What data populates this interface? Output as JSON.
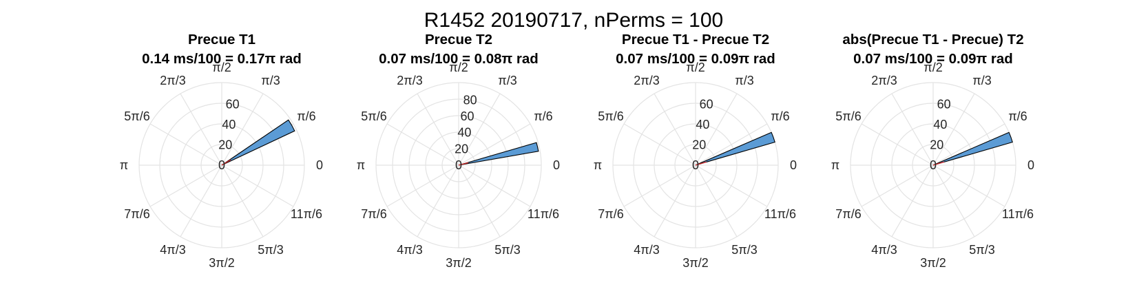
{
  "figure": {
    "suptitle": "R1452 20190717, nPerms = 100"
  },
  "colors": {
    "bar_fill": "#5b9bd5",
    "bar_edge": "#000000",
    "mean_line": "#d62728",
    "grid": "#e3e3e3"
  },
  "chart_data": [
    {
      "type": "polar-histogram",
      "title": "Precue T1",
      "subtitle": "0.14 ms/100 = 0.17π rad",
      "theta_tick_labels": [
        "0",
        "π/6",
        "π/3",
        "π/2",
        "2π/3",
        "5π/6",
        "π",
        "7π/6",
        "4π/3",
        "3π/2",
        "5π/3",
        "11π/6"
      ],
      "r_tick_labels": [
        "0",
        "20",
        "40",
        "60"
      ],
      "r_max": 80,
      "bins": [
        {
          "theta_start": 0.14,
          "theta_end": 0.19,
          "value": 78
        }
      ],
      "mean_vector": {
        "theta": 0.17,
        "length": 10
      }
    },
    {
      "type": "polar-histogram",
      "title": "Precue T2",
      "subtitle": "0.07 ms/100 = 0.08π rad",
      "theta_tick_labels": [
        "0",
        "π/6",
        "π/3",
        "π/2",
        "2π/3",
        "5π/6",
        "π",
        "7π/6",
        "4π/3",
        "3π/2",
        "5π/3",
        "11π/6"
      ],
      "r_tick_labels": [
        "0",
        "20",
        "40",
        "60",
        "80"
      ],
      "r_max": 100,
      "bins": [
        {
          "theta_start": 0.055,
          "theta_end": 0.09,
          "value": 98
        }
      ],
      "mean_vector": {
        "theta": 0.08,
        "length": 12
      }
    },
    {
      "type": "polar-histogram",
      "title": "Precue T1 - Precue T2",
      "subtitle": "0.07 ms/100 = 0.09π rad",
      "theta_tick_labels": [
        "0",
        "π/6",
        "π/3",
        "π/2",
        "2π/3",
        "5π/6",
        "π",
        "7π/6",
        "4π/3",
        "3π/2",
        "5π/3",
        "11π/6"
      ],
      "r_tick_labels": [
        "0",
        "20",
        "40",
        "60"
      ],
      "r_max": 80,
      "bins": [
        {
          "theta_start": 0.09,
          "theta_end": 0.13,
          "value": 80
        }
      ],
      "mean_vector": {
        "theta": 0.09,
        "length": 11
      }
    },
    {
      "type": "polar-histogram",
      "title": "abs(Precue T1 - Precue) T2",
      "subtitle": "0.07 ms/100 = 0.09π rad",
      "theta_tick_labels": [
        "0",
        "π/6",
        "π/3",
        "π/2",
        "2π/3",
        "5π/6",
        "π",
        "7π/6",
        "4π/3",
        "3π/2",
        "5π/3",
        "11π/6"
      ],
      "r_tick_labels": [
        "0",
        "20",
        "40",
        "60"
      ],
      "r_max": 80,
      "bins": [
        {
          "theta_start": 0.09,
          "theta_end": 0.13,
          "value": 80
        }
      ],
      "mean_vector": {
        "theta": 0.09,
        "length": 11
      }
    }
  ]
}
